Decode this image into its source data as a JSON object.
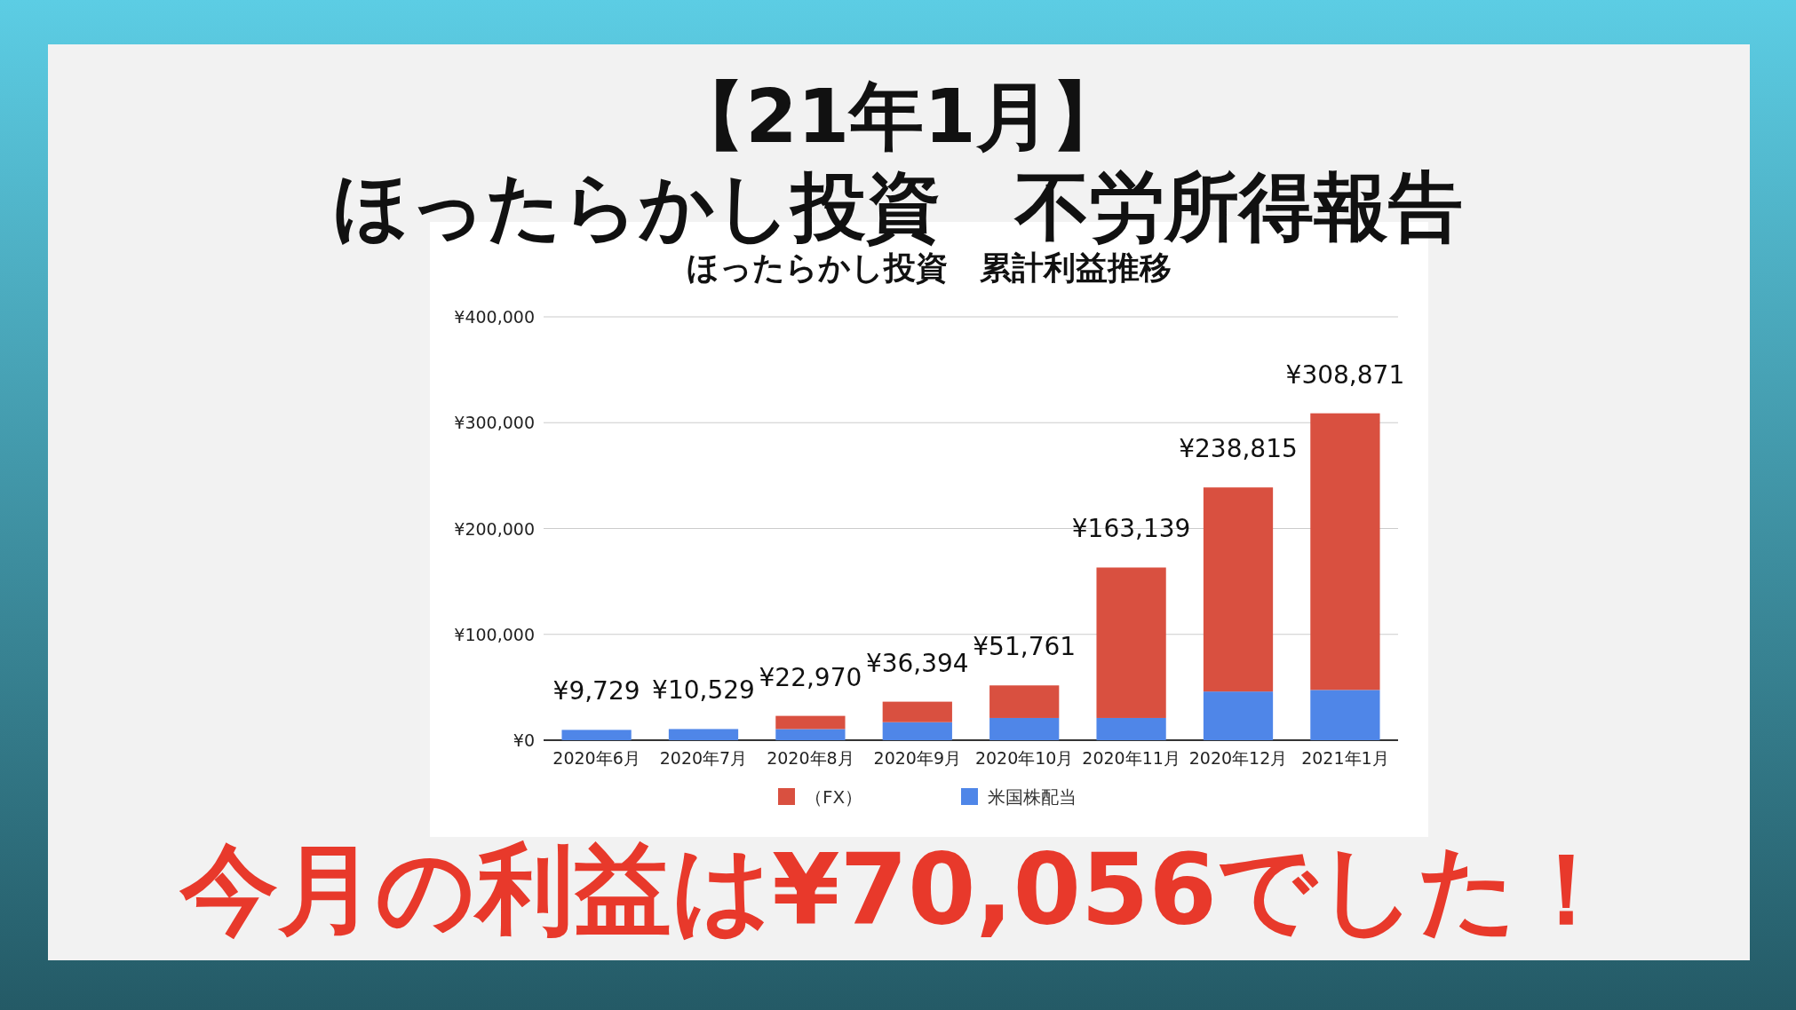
{
  "chart_data": {
    "type": "bar",
    "title": "【21年1月】",
    "subtitle": "ほったらかし投資　不労所得報告",
    "categories": [
      "2020年6月",
      "2020年7月",
      "2020年8月",
      "2020年9月",
      "2020年10月",
      "2020年11月",
      "2020年12月",
      "2021年1月"
    ],
    "series": [
      {
        "name": "米国株配当",
        "color": "#4f86e8",
        "values": [
          9729,
          10529,
          10529,
          17000,
          21000,
          21000,
          46000,
          47500
        ]
      },
      {
        "name": "（FX）",
        "color": "#d95040",
        "values": [
          0,
          0,
          12441,
          19394,
          30761,
          142139,
          192815,
          261371
        ]
      }
    ],
    "stacked": true,
    "totals": [
      "¥9,729",
      "¥10,529",
      "¥22,970",
      "¥36,394",
      "¥51,761",
      "¥163,139",
      "¥238,815",
      "¥308,871"
    ],
    "ylim": [
      0,
      400000
    ],
    "yticks": [
      {
        "value": 0,
        "label": "¥0"
      },
      {
        "value": 100000,
        "label": "¥100,000"
      },
      {
        "value": 200000,
        "label": "¥200,000"
      },
      {
        "value": 300000,
        "label": "¥300,000"
      },
      {
        "value": 400000,
        "label": "¥400,000"
      }
    ],
    "grid": "y",
    "legend": "bottom",
    "annotations": [
      "ほったらかし投資　累計利益推移",
      "今月の利益は¥70,056でした！"
    ]
  }
}
